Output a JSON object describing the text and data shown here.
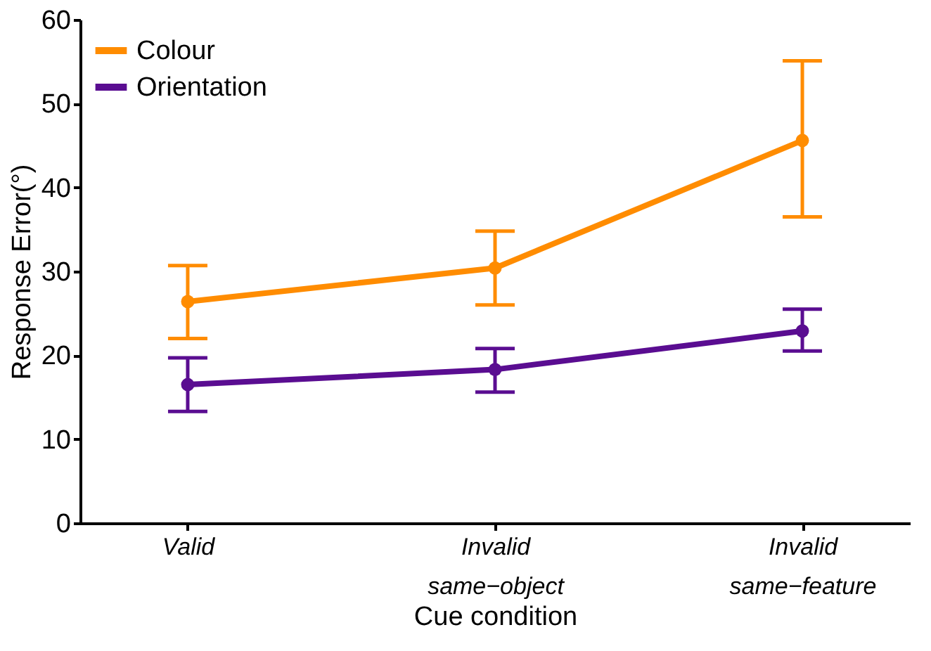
{
  "chart_data": {
    "type": "line",
    "xlabel": "Cue condition",
    "ylabel": "Response Error(°)",
    "categories": [
      "Valid",
      "Invalid\nsame−object",
      "Invalid\nsame−feature"
    ],
    "series": [
      {
        "name": "Colour",
        "color": "#ff8c00",
        "values": [
          26.4,
          30.4,
          45.6
        ],
        "errors": [
          [
            22.0,
            30.7
          ],
          [
            26.0,
            34.8
          ],
          [
            36.5,
            55.1
          ]
        ]
      },
      {
        "name": "Orientation",
        "color": "#5a0d91",
        "values": [
          16.5,
          18.3,
          22.9
        ],
        "errors": [
          [
            13.3,
            19.7
          ],
          [
            15.6,
            20.8
          ],
          [
            20.5,
            25.5
          ]
        ]
      }
    ],
    "ylim": [
      0,
      60
    ],
    "yticks": [
      0,
      10,
      20,
      30,
      40,
      50,
      60
    ],
    "grid": false,
    "legend": "top left",
    "marker": "circle",
    "line_style": "solid"
  }
}
